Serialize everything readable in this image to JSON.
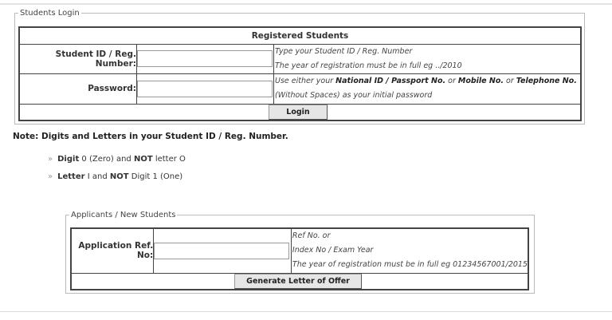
{
  "login": {
    "legend": "Students Login",
    "header": "Registered Students",
    "id_label": "Student ID / Reg. Number:",
    "id_value": "",
    "id_hint1": "Type your Student ID / Reg. Number",
    "id_hint2": "The year of registration must be in full eg ../2010",
    "pw_label": "Password:",
    "pw_value": "",
    "pw_hint_pre": "Use either your ",
    "pw_hint_b1": "National ID / Passport No.",
    "pw_hint_or1": " or ",
    "pw_hint_b2": "Mobile No.",
    "pw_hint_or2": " or ",
    "pw_hint_b3": "Telephone No.",
    "pw_hint2": "(Without Spaces) as your initial password",
    "button": "Login"
  },
  "note": {
    "title": "Note: Digits and Letters in your Student ID / Reg. Number.",
    "items": [
      {
        "b1": "Digit",
        "t1": " 0 (Zero) and ",
        "b2": "NOT",
        "t2": " letter O"
      },
      {
        "b1": "Letter",
        "t1": " I and ",
        "b2": "NOT",
        "t2": " Digit 1 (One)"
      }
    ]
  },
  "applicants": {
    "legend": "Applicants / New Students",
    "label": "Application Ref. No:",
    "value": "",
    "hint1": "Ref No. or",
    "hint2": "Index No / Exam Year",
    "hint3": "The year of registration must be in full eg 01234567001/2015",
    "button": "Generate Letter of Offer"
  }
}
